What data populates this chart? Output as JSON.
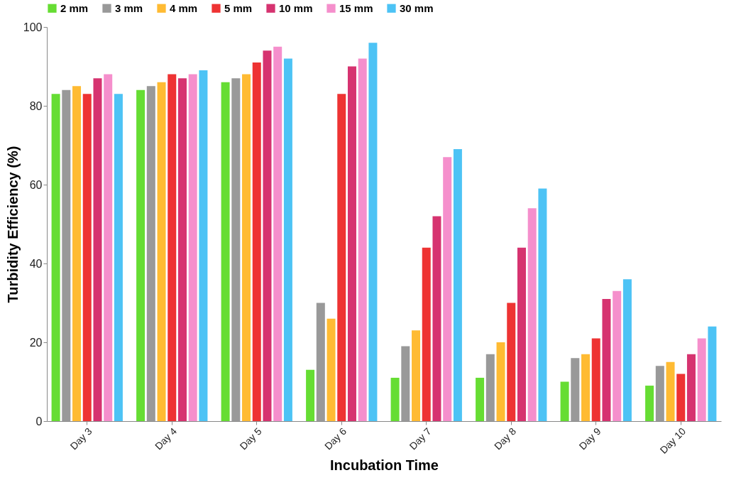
{
  "chart_data": {
    "type": "bar",
    "xlabel": "Incubation Time",
    "ylabel": "Turbidity Efficiency (%)",
    "categories": [
      "Day 3",
      "Day 4",
      "Day 5",
      "Day 6",
      "Day 7",
      "Day 8",
      "Day 9",
      "Day 10"
    ],
    "series": [
      {
        "name": "2 mm",
        "color": "#66dd33",
        "values": [
          83,
          84,
          86,
          13,
          11,
          11,
          10,
          9
        ]
      },
      {
        "name": "3 mm",
        "color": "#999999",
        "values": [
          84,
          85,
          87,
          30,
          19,
          17,
          16,
          14
        ]
      },
      {
        "name": "4 mm",
        "color": "#ffbb33",
        "values": [
          85,
          86,
          88,
          26,
          23,
          20,
          17,
          15
        ]
      },
      {
        "name": "5 mm",
        "color": "#ee3333",
        "values": [
          83,
          88,
          91,
          83,
          44,
          30,
          21,
          12
        ]
      },
      {
        "name": "10 mm",
        "color": "#d63370",
        "values": [
          87,
          87,
          94,
          90,
          52,
          44,
          31,
          17
        ]
      },
      {
        "name": "15 mm",
        "color": "#f58fcc",
        "values": [
          88,
          88,
          95,
          92,
          67,
          54,
          33,
          21
        ]
      },
      {
        "name": "30 mm",
        "color": "#4dc3f5",
        "values": [
          83,
          89,
          92,
          96,
          69,
          59,
          36,
          24
        ]
      }
    ],
    "ylim": [
      0,
      100
    ],
    "yticks": [
      0,
      20,
      40,
      60,
      80,
      100
    ],
    "grid": false,
    "legend": "top"
  }
}
